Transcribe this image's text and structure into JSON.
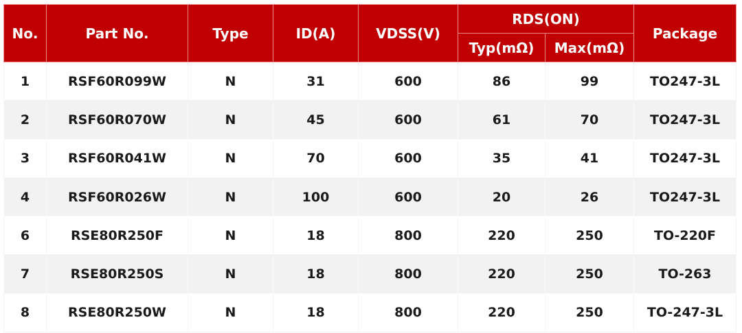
{
  "table": {
    "headers": {
      "no": "No.",
      "part": "Part No.",
      "type": "Type",
      "id": "ID(A)",
      "vdss": "VDSS(V)",
      "rds": "RDS(ON)",
      "typ": "Typ(mΩ)",
      "max": "Max(mΩ)",
      "package": "Package"
    },
    "rows": [
      [
        "1",
        "RSF60R099W",
        "N",
        "31",
        "600",
        "86",
        "99",
        "TO247-3L"
      ],
      [
        "2",
        "RSF60R070W",
        "N",
        "45",
        "600",
        "61",
        "70",
        "TO247-3L"
      ],
      [
        "3",
        "RSF60R041W",
        "N",
        "70",
        "600",
        "35",
        "41",
        "TO247-3L"
      ],
      [
        "4",
        "RSF60R026W",
        "N",
        "100",
        "600",
        "20",
        "26",
        "TO247-3L"
      ],
      [
        "6",
        "RSE80R250F",
        "N",
        "18",
        "800",
        "220",
        "250",
        "TO-220F"
      ],
      [
        "7",
        "RSE80R250S",
        "N",
        "18",
        "800",
        "220",
        "250",
        "TO-263"
      ],
      [
        "8",
        "RSE80R250W",
        "N",
        "18",
        "800",
        "220",
        "250",
        "TO-247-3L"
      ]
    ]
  },
  "colors": {
    "header_bg": "#c00000",
    "alt_row_bg": "#f2f2f2"
  }
}
